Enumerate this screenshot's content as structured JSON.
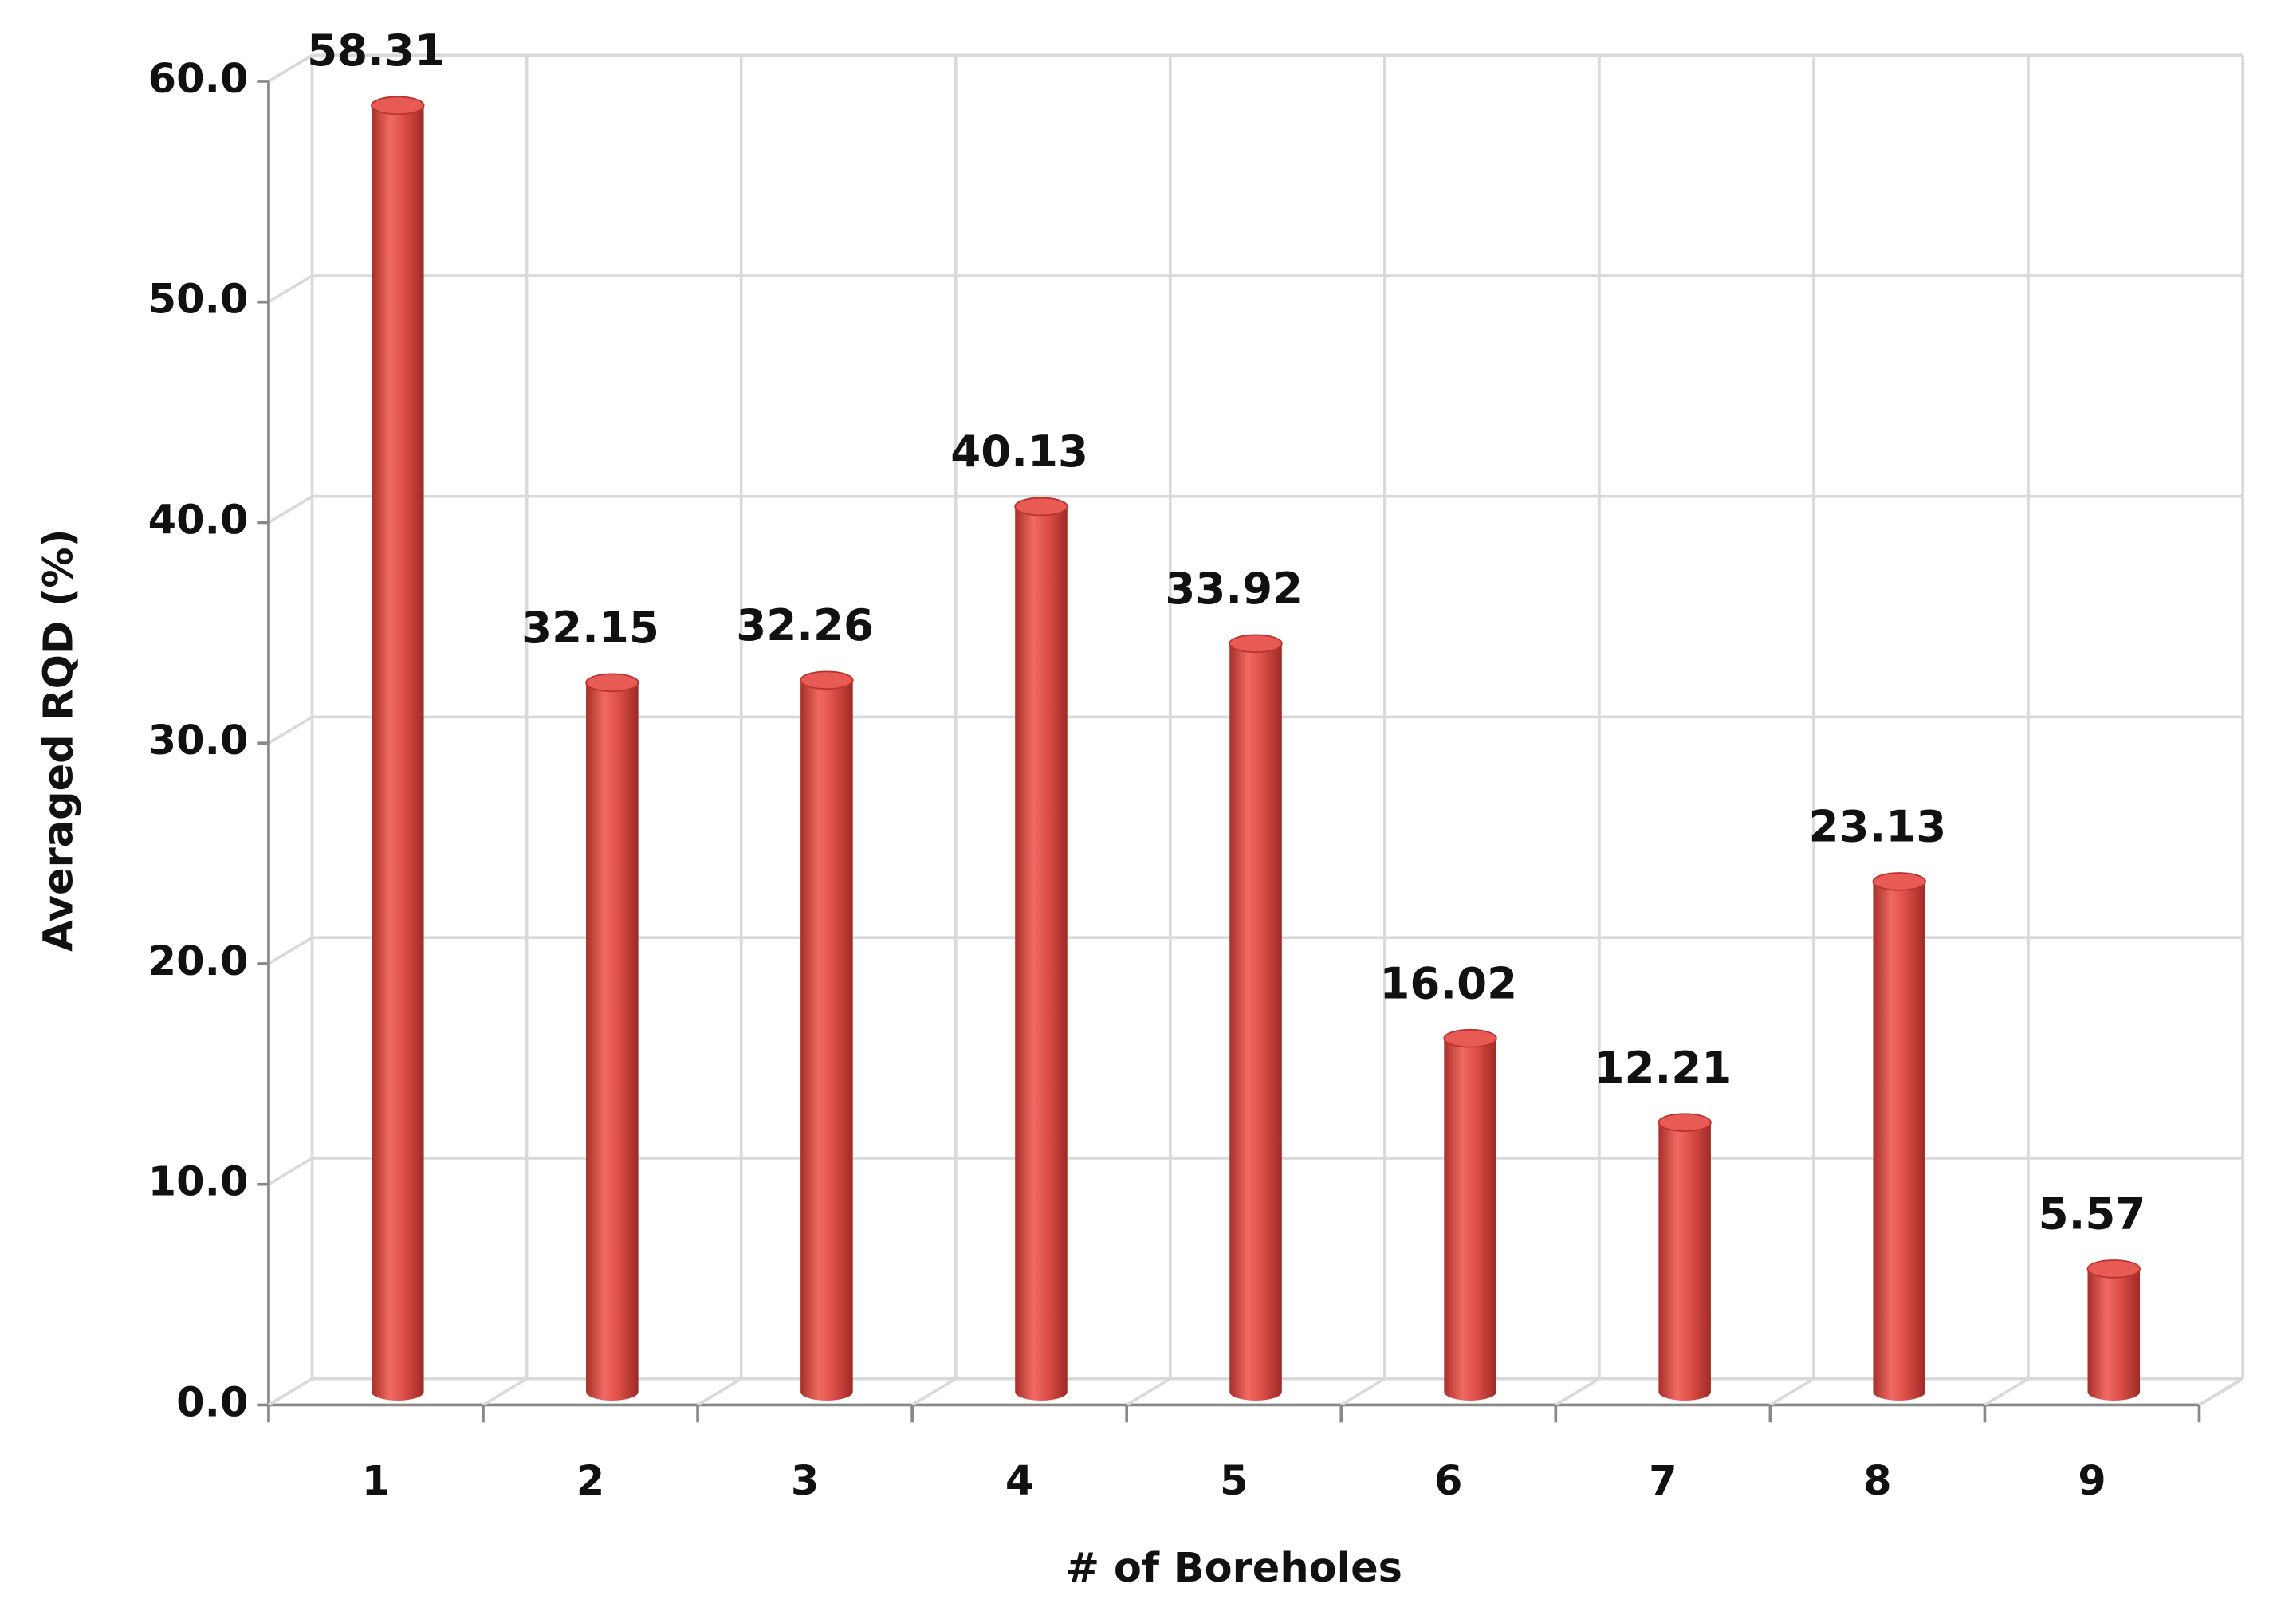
{
  "chart_data": {
    "type": "bar",
    "x_label": "# of Boreholes",
    "y_label": "Averaged RQD (%)",
    "categories": [
      "1",
      "2",
      "3",
      "4",
      "5",
      "6",
      "7",
      "8",
      "9"
    ],
    "values": [
      58.31,
      32.15,
      32.26,
      40.13,
      33.92,
      16.02,
      12.21,
      23.13,
      5.57
    ],
    "color": "#e0504a",
    "ylim": [
      0,
      60
    ],
    "yticks": [
      {
        "value": 0,
        "label": "0.0"
      },
      {
        "value": 10,
        "label": "10.0"
      },
      {
        "value": 20,
        "label": "20.0"
      },
      {
        "value": 30,
        "label": "30.0"
      },
      {
        "value": 40,
        "label": "40.0"
      },
      {
        "value": 50,
        "label": "50.0"
      },
      {
        "value": 60,
        "label": "60.0"
      }
    ],
    "grid": true
  }
}
